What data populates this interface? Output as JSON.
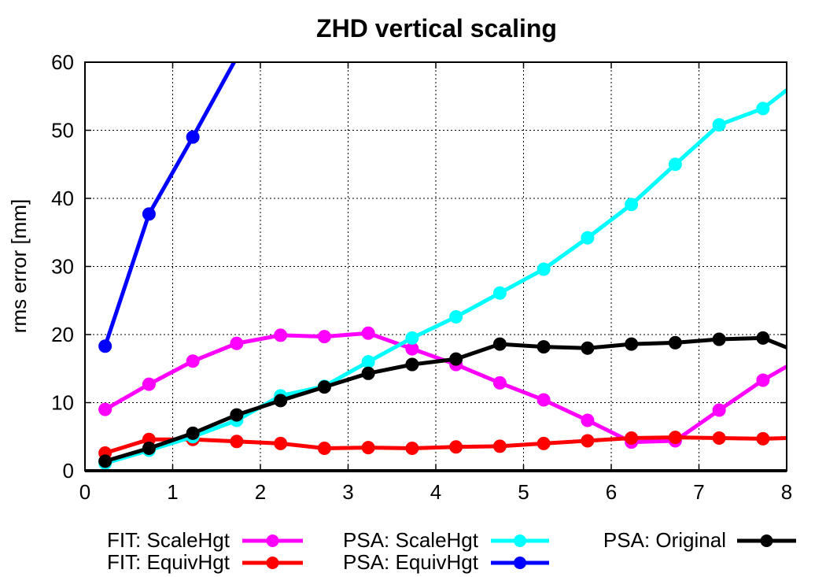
{
  "chart_data": {
    "type": "line",
    "title": "ZHD vertical scaling",
    "xlabel": "",
    "ylabel": "rms error [mm]",
    "xlim": [
      0,
      8
    ],
    "ylim": [
      0,
      60
    ],
    "xticks": [
      0,
      1,
      2,
      3,
      4,
      5,
      6,
      7,
      8
    ],
    "yticks": [
      0,
      10,
      20,
      30,
      40,
      50,
      60
    ],
    "grid": true,
    "legend_position": "bottom",
    "series": [
      {
        "name": "FIT: ScaleHgt",
        "color": "#ff00ff",
        "x": [
          0.23,
          0.73,
          1.23,
          1.73,
          2.23,
          2.73,
          3.23,
          3.73,
          4.23,
          4.73,
          5.23,
          5.73,
          6.23,
          6.73,
          7.23,
          7.73,
          8.0
        ],
        "y": [
          9.0,
          12.7,
          16.1,
          18.7,
          19.9,
          19.7,
          20.2,
          17.9,
          15.6,
          12.9,
          10.4,
          7.4,
          4.2,
          4.4,
          8.9,
          13.3,
          15.3
        ]
      },
      {
        "name": "FIT: EquivHgt",
        "color": "#ff0000",
        "x": [
          0.23,
          0.73,
          1.23,
          1.73,
          2.23,
          2.73,
          3.23,
          3.73,
          4.23,
          4.73,
          5.23,
          5.73,
          6.23,
          6.73,
          7.23,
          7.73,
          8.0
        ],
        "y": [
          2.6,
          4.6,
          4.6,
          4.3,
          4.0,
          3.3,
          3.4,
          3.3,
          3.5,
          3.6,
          4.0,
          4.4,
          4.8,
          4.9,
          4.8,
          4.7,
          4.8
        ]
      },
      {
        "name": "PSA: ScaleHgt",
        "color": "#00ffff",
        "x": [
          0.23,
          0.73,
          1.23,
          1.73,
          2.23,
          2.73,
          3.23,
          3.73,
          4.23,
          4.73,
          5.23,
          5.73,
          6.23,
          6.73,
          7.23,
          7.73,
          8.0
        ],
        "y": [
          1.1,
          3.0,
          5.0,
          7.4,
          11.0,
          12.4,
          16.0,
          19.5,
          22.6,
          26.1,
          29.6,
          34.2,
          39.1,
          45.0,
          50.8,
          53.2,
          55.9
        ]
      },
      {
        "name": "PSA: EquivHgt",
        "color": "#0000ff",
        "x": [
          0.23,
          0.73,
          1.23,
          1.7
        ],
        "y": [
          18.3,
          37.7,
          49.0,
          60.0
        ]
      },
      {
        "name": "PSA: Original",
        "color": "#000000",
        "x": [
          0.23,
          0.73,
          1.23,
          1.73,
          2.23,
          2.73,
          3.23,
          3.73,
          4.23,
          4.73,
          5.23,
          5.73,
          6.23,
          6.73,
          7.23,
          7.73,
          8.0
        ],
        "y": [
          1.4,
          3.3,
          5.5,
          8.2,
          10.3,
          12.3,
          14.3,
          15.6,
          16.4,
          18.6,
          18.2,
          18.0,
          18.6,
          18.8,
          19.3,
          19.5,
          18.1
        ]
      }
    ]
  }
}
